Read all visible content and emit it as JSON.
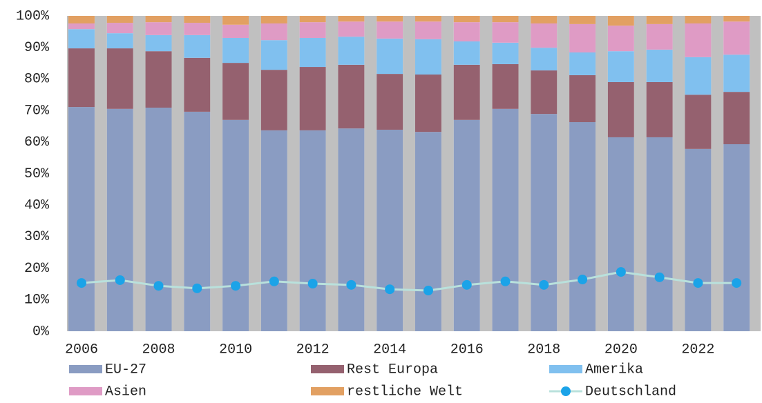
{
  "chart_data": {
    "type": "stacked_bar_line",
    "categories": [
      "2006",
      null,
      "2008",
      null,
      "2010",
      null,
      "2012",
      null,
      "2014",
      null,
      "2016",
      null,
      "2018",
      null,
      "2020",
      null,
      "2022",
      null
    ],
    "series": [
      {
        "name": "EU-27",
        "color": "#8a9cc2",
        "values": [
          71.1,
          70.5,
          70.9,
          69.6,
          67,
          63.7,
          63.7,
          64.3,
          63.9,
          63.2,
          67,
          70.5,
          68.9,
          66.3,
          61.5,
          61.5,
          57.8,
          59.3
        ]
      },
      {
        "name": "Rest Europa",
        "color": "#95616f",
        "values": [
          18.6,
          19.2,
          17.9,
          17.1,
          18.1,
          19.2,
          20.1,
          20.2,
          17.7,
          18.2,
          17.5,
          14.2,
          13.8,
          14.9,
          17.5,
          17.5,
          17.2,
          16.6
        ]
      },
      {
        "name": "Amerika",
        "color": "#80c0ef",
        "values": [
          6.1,
          4.8,
          5.1,
          7.2,
          7.9,
          9.4,
          9.2,
          8.9,
          11.2,
          11.2,
          7.4,
          6.8,
          7.2,
          7.2,
          9.8,
          10.3,
          11.9,
          11.8
        ]
      },
      {
        "name": "Asien",
        "color": "#df9bc5",
        "values": [
          1.8,
          3.3,
          4.1,
          3.9,
          4.2,
          5.3,
          5,
          4.8,
          5.4,
          5.6,
          6.1,
          6.5,
          7.7,
          9,
          8.1,
          8.1,
          10.7,
          10.5
        ]
      },
      {
        "name": "restliche Welt",
        "color": "#e2a062",
        "values": [
          2.4,
          2.2,
          2,
          2.2,
          2.8,
          2.4,
          2,
          1.8,
          1.8,
          1.8,
          2,
          2,
          2.4,
          2.6,
          3.1,
          2.6,
          2.4,
          1.8
        ]
      },
      {
        "name": "Deutschland",
        "type": "line",
        "color": "#b9e1dc",
        "marker_color": "#1ba3e8",
        "values": [
          15.3,
          16.2,
          14.4,
          13.6,
          14.4,
          15.8,
          15.1,
          14.7,
          13.3,
          12.9,
          14.7,
          15.8,
          14.7,
          16.4,
          18.8,
          17.1,
          15.3,
          15.3
        ]
      }
    ],
    "ylim": [
      0,
      100
    ],
    "yticks": [
      {
        "value": 0,
        "label": "0%"
      },
      {
        "value": 10,
        "label": "10%"
      },
      {
        "value": 20,
        "label": "20%"
      },
      {
        "value": 30,
        "label": "30%"
      },
      {
        "value": 40,
        "label": "40%"
      },
      {
        "value": 50,
        "label": "50%"
      },
      {
        "value": 60,
        "label": "60%"
      },
      {
        "value": 70,
        "label": "70%"
      },
      {
        "value": 80,
        "label": "80%"
      },
      {
        "value": 90,
        "label": "90%"
      },
      {
        "value": 100,
        "label": "100%"
      }
    ],
    "legend": "bottom"
  }
}
